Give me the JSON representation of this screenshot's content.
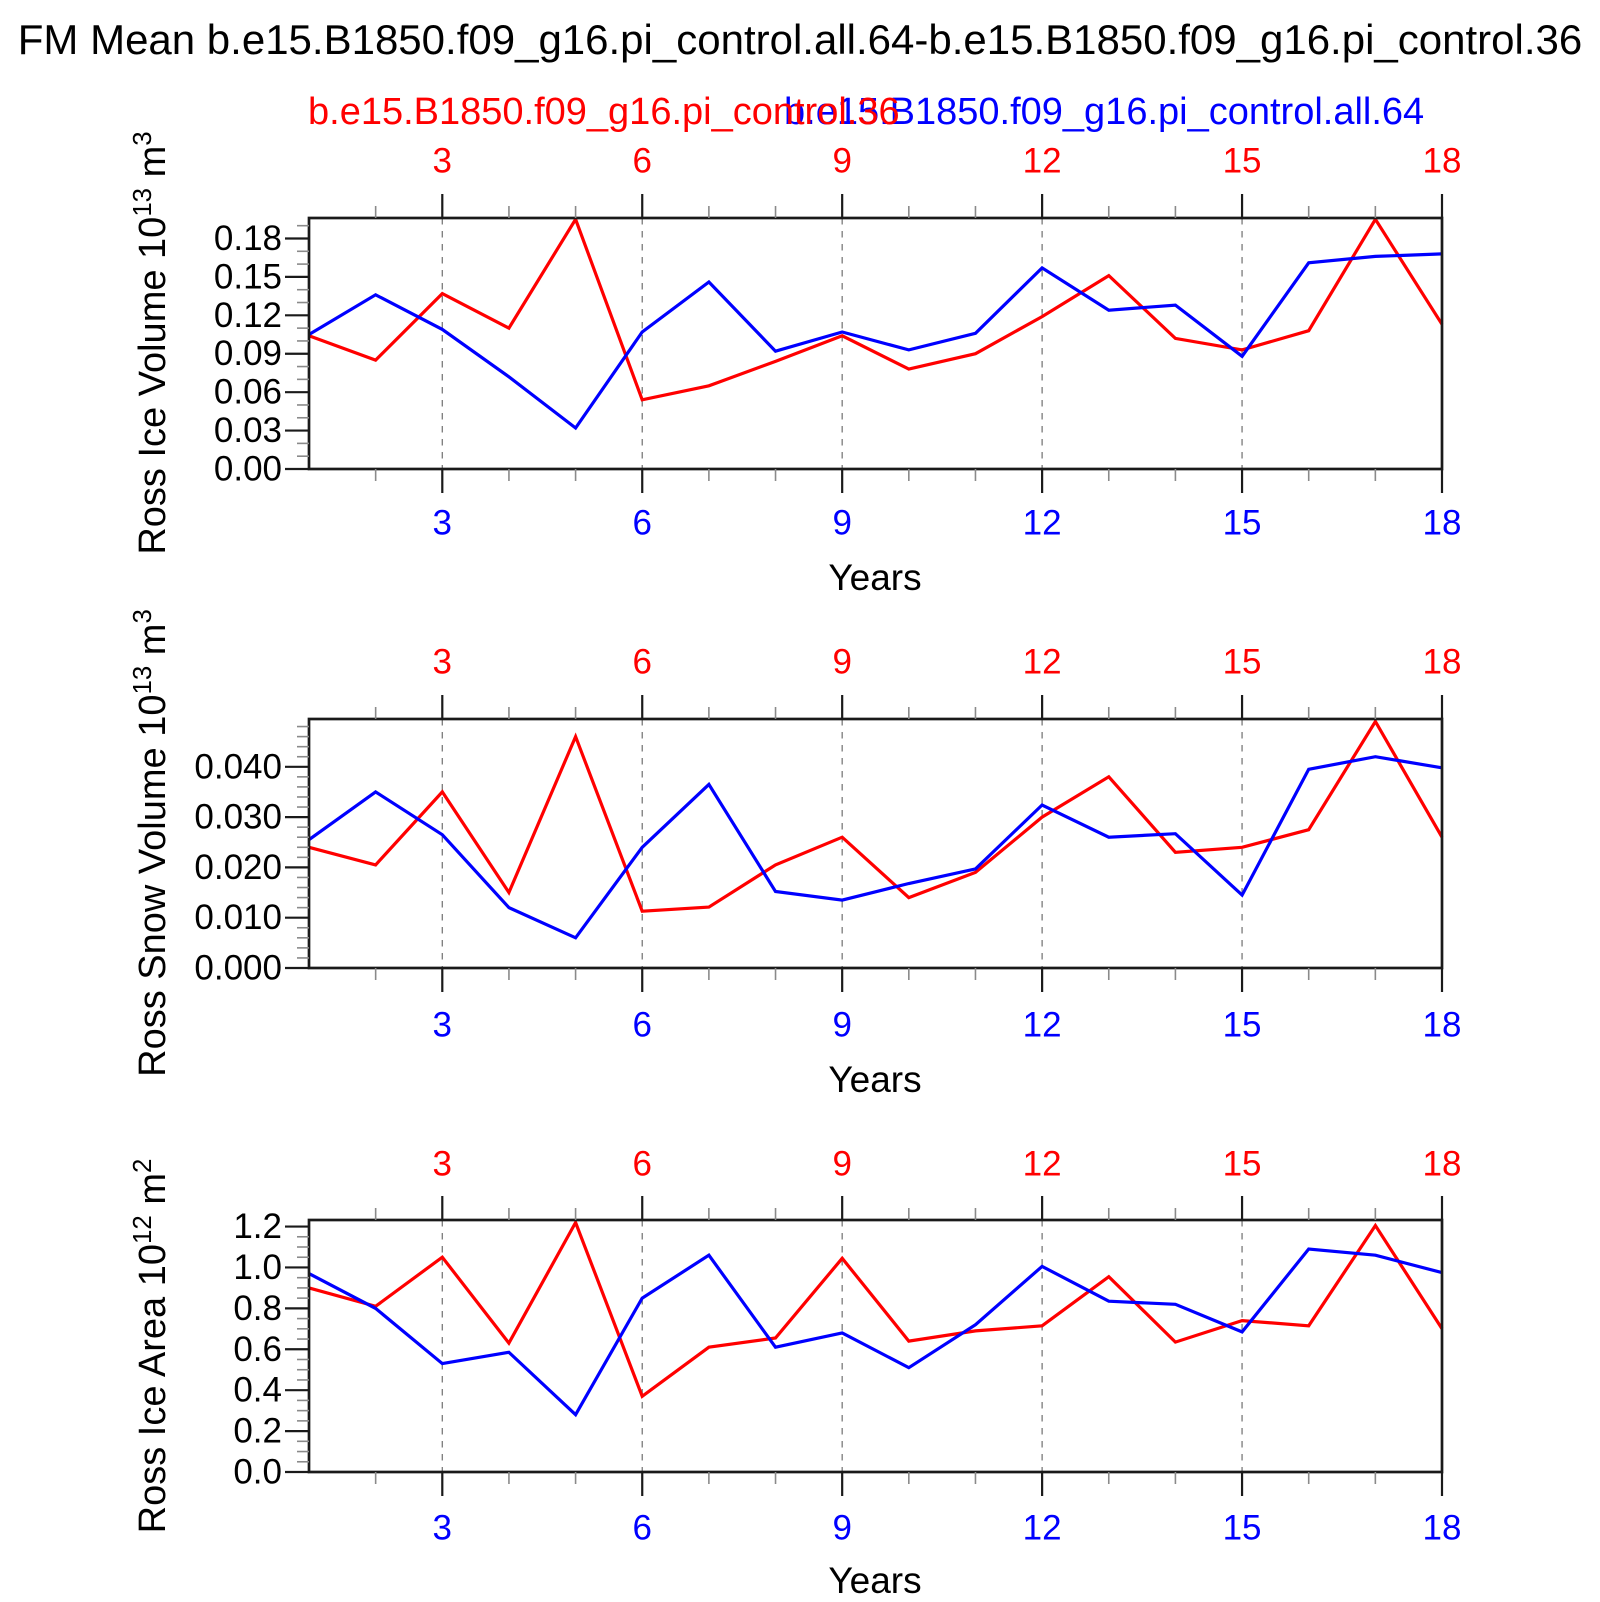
{
  "title": "FM Mean b.e15.B1850.f09_g16.pi_control.all.64-b.e15.B1850.f09_g16.pi_control.36",
  "legend": {
    "red_label": "b.e15.B1850.f09_g16.pi_control.36",
    "blue_label": "b.e15.B1850.f09_g16.pi_control.all.64"
  },
  "colors": {
    "red": "#ff0000",
    "blue": "#0000ff",
    "axis": "#1a1a1a",
    "minor_tick": "#8a8a8a",
    "gridline": "#7a7a7a",
    "text": "#000000",
    "background": "#ffffff"
  },
  "x_axis": {
    "label": "Years",
    "range": [
      1,
      18
    ],
    "major_ticks": [
      3,
      6,
      9,
      12,
      15,
      18
    ],
    "major_tick_labels": [
      "3",
      "6",
      "9",
      "12",
      "15",
      "18"
    ],
    "minor_ticks": [
      2,
      4,
      5,
      7,
      8,
      10,
      11,
      13,
      14,
      16,
      17
    ],
    "gridlines": [
      3,
      6,
      9,
      12,
      15
    ],
    "top_label_color": "#ff0000",
    "bottom_label_color": "#0000ff"
  },
  "chart_data": [
    {
      "type": "line",
      "ylabel": "Ross Ice Volume 10^13 m^3",
      "ylabel_base": "Ross Ice Volume 10",
      "ylabel_sup1": "13",
      "ylabel_mid": " m",
      "ylabel_sup2": "3",
      "xlabel": "Years",
      "ylim": [
        0,
        0.196
      ],
      "ytick_values": [
        0,
        0.03,
        0.06,
        0.09,
        0.12,
        0.15,
        0.18
      ],
      "ytick_labels": [
        "0.00",
        "0.03",
        "0.06",
        "0.09",
        "0.12",
        "0.15",
        "0.18"
      ],
      "yminor_step": 0.01,
      "x": [
        1,
        2,
        3,
        4,
        5,
        6,
        7,
        8,
        9,
        10,
        11,
        12,
        13,
        14,
        15,
        16,
        17,
        18
      ],
      "series": [
        {
          "name": "b.e15.B1850.f09_g16.pi_control.36",
          "color": "#ff0000",
          "values": [
            0.104,
            0.085,
            0.137,
            0.11,
            0.195,
            0.054,
            0.065,
            0.084,
            0.104,
            0.078,
            0.09,
            0.119,
            0.151,
            0.102,
            0.093,
            0.108,
            0.195,
            0.113
          ]
        },
        {
          "name": "b.e15.B1850.f09_g16.pi_control.all.64",
          "color": "#0000ff",
          "values": [
            0.105,
            0.136,
            0.109,
            0.072,
            0.032,
            0.107,
            0.146,
            0.092,
            0.107,
            0.093,
            0.106,
            0.157,
            0.124,
            0.128,
            0.088,
            0.161,
            0.166,
            0.168
          ]
        }
      ]
    },
    {
      "type": "line",
      "ylabel": "Ross Snow Volume 10^13 m^3",
      "ylabel_base": "Ross Snow Volume 10",
      "ylabel_sup1": "13",
      "ylabel_mid": " m",
      "ylabel_sup2": "3",
      "xlabel": "Years",
      "ylim": [
        0,
        0.0495
      ],
      "ytick_values": [
        0,
        0.01,
        0.02,
        0.03,
        0.04
      ],
      "ytick_labels": [
        "0.000",
        "0.010",
        "0.020",
        "0.030",
        "0.040"
      ],
      "yminor_step": 0.002,
      "x": [
        1,
        2,
        3,
        4,
        5,
        6,
        7,
        8,
        9,
        10,
        11,
        12,
        13,
        14,
        15,
        16,
        17,
        18
      ],
      "series": [
        {
          "name": "b.e15.B1850.f09_g16.pi_control.36",
          "color": "#ff0000",
          "values": [
            0.024,
            0.0205,
            0.035,
            0.015,
            0.046,
            0.0113,
            0.0121,
            0.0205,
            0.026,
            0.014,
            0.019,
            0.03,
            0.038,
            0.023,
            0.024,
            0.0275,
            0.049,
            0.026
          ]
        },
        {
          "name": "b.e15.B1850.f09_g16.pi_control.all.64",
          "color": "#0000ff",
          "values": [
            0.0255,
            0.035,
            0.0265,
            0.012,
            0.006,
            0.024,
            0.0365,
            0.0152,
            0.0135,
            0.0168,
            0.0197,
            0.0324,
            0.026,
            0.0267,
            0.0145,
            0.0395,
            0.042,
            0.0398
          ]
        }
      ]
    },
    {
      "type": "line",
      "ylabel": "Ross Ice Area 10^12 m^2",
      "ylabel_base": "Ross Ice Area 10",
      "ylabel_sup1": "12",
      "ylabel_mid": " m",
      "ylabel_sup2": "2",
      "xlabel": "Years",
      "ylim": [
        0,
        1.232
      ],
      "ytick_values": [
        0,
        0.2,
        0.4,
        0.6,
        0.8,
        1.0,
        1.2
      ],
      "ytick_labels": [
        "0.0",
        "0.2",
        "0.4",
        "0.6",
        "0.8",
        "1.0",
        "1.2"
      ],
      "yminor_step": 0.05,
      "x": [
        1,
        2,
        3,
        4,
        5,
        6,
        7,
        8,
        9,
        10,
        11,
        12,
        13,
        14,
        15,
        16,
        17,
        18
      ],
      "series": [
        {
          "name": "b.e15.B1850.f09_g16.pi_control.36",
          "color": "#ff0000",
          "values": [
            0.9,
            0.81,
            1.05,
            0.63,
            1.22,
            0.37,
            0.61,
            0.655,
            1.045,
            0.64,
            0.69,
            0.715,
            0.955,
            0.635,
            0.74,
            0.715,
            1.205,
            0.7
          ]
        },
        {
          "name": "b.e15.B1850.f09_g16.pi_control.all.64",
          "color": "#0000ff",
          "values": [
            0.97,
            0.8,
            0.53,
            0.585,
            0.28,
            0.85,
            1.06,
            0.61,
            0.68,
            0.51,
            0.72,
            1.005,
            0.835,
            0.82,
            0.685,
            1.09,
            1.06,
            0.975
          ]
        }
      ]
    }
  ]
}
